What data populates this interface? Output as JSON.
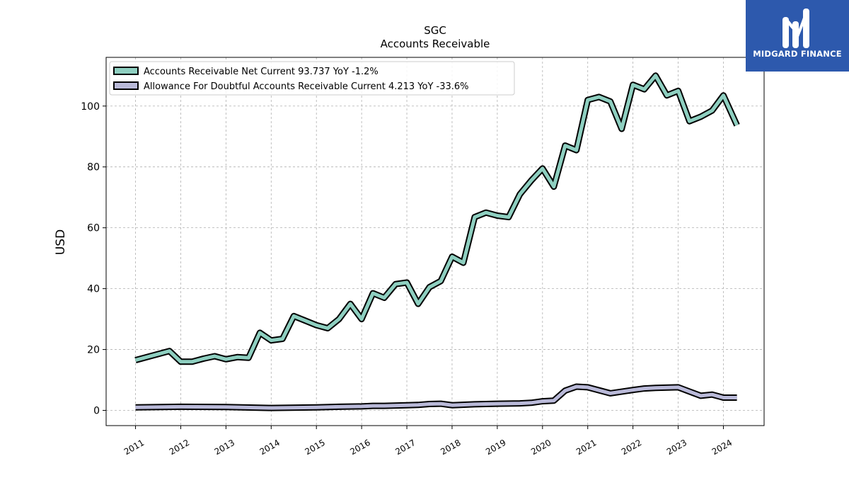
{
  "brand": {
    "name": "MIDGARD FINANCE",
    "bg_color": "#2d59ad"
  },
  "chart_data": {
    "type": "line",
    "title": "SGC",
    "subtitle": "Accounts Receivable",
    "ylabel": "USD",
    "xlabel": "",
    "ylim": [
      -5,
      116
    ],
    "yticks": [
      0,
      20,
      40,
      60,
      80,
      100
    ],
    "xlim": [
      2010.35,
      2024.9
    ],
    "xticks": [
      "2011",
      "2012",
      "2013",
      "2014",
      "2015",
      "2016",
      "2017",
      "2018",
      "2019",
      "2020",
      "2021",
      "2022",
      "2023",
      "2024"
    ],
    "grid": true,
    "legend_position": "top-left",
    "series": [
      {
        "name": "Accounts Receivable Net Current",
        "legend_label": "Accounts Receivable Net Current  93.737 YoY -1.2%",
        "color": "#8ecfc0",
        "points": [
          [
            2011.0,
            16.5
          ],
          [
            2011.75,
            19.5
          ],
          [
            2012.0,
            16.0
          ],
          [
            2012.25,
            16.0
          ],
          [
            2012.5,
            17.0
          ],
          [
            2012.75,
            17.8
          ],
          [
            2013.0,
            16.8
          ],
          [
            2013.25,
            17.5
          ],
          [
            2013.5,
            17.3
          ],
          [
            2013.75,
            25.5
          ],
          [
            2014.0,
            23.0
          ],
          [
            2014.25,
            23.5
          ],
          [
            2014.5,
            31.0
          ],
          [
            2014.75,
            29.5
          ],
          [
            2015.0,
            28.0
          ],
          [
            2015.25,
            27.0
          ],
          [
            2015.5,
            30.0
          ],
          [
            2015.75,
            35.0
          ],
          [
            2016.0,
            30.0
          ],
          [
            2016.25,
            38.5
          ],
          [
            2016.5,
            37.0
          ],
          [
            2016.75,
            41.5
          ],
          [
            2017.0,
            42.0
          ],
          [
            2017.25,
            35.0
          ],
          [
            2017.5,
            40.5
          ],
          [
            2017.75,
            42.5
          ],
          [
            2018.0,
            50.5
          ],
          [
            2018.25,
            48.5
          ],
          [
            2018.5,
            63.5
          ],
          [
            2018.75,
            65.0
          ],
          [
            2019.0,
            64.0
          ],
          [
            2019.25,
            63.5
          ],
          [
            2019.5,
            71.0
          ],
          [
            2019.75,
            75.5
          ],
          [
            2020.0,
            79.5
          ],
          [
            2020.25,
            73.5
          ],
          [
            2020.5,
            87.0
          ],
          [
            2020.75,
            85.5
          ],
          [
            2021.0,
            102.0
          ],
          [
            2021.25,
            103.0
          ],
          [
            2021.5,
            101.5
          ],
          [
            2021.75,
            92.5
          ],
          [
            2022.0,
            107.0
          ],
          [
            2022.25,
            105.5
          ],
          [
            2022.5,
            110.0
          ],
          [
            2022.75,
            103.5
          ],
          [
            2023.0,
            105.0
          ],
          [
            2023.25,
            95.0
          ],
          [
            2023.5,
            96.5
          ],
          [
            2023.75,
            98.5
          ],
          [
            2024.0,
            103.5
          ],
          [
            2024.3,
            93.7
          ]
        ]
      },
      {
        "name": "Allowance For Doubtful Accounts Receivable Current",
        "legend_label": "Allowance For Doubtful Accounts Receivable Current  4.213 YoY -33.6%",
        "color": "#b9b9d8",
        "points": [
          [
            2011.0,
            1.0
          ],
          [
            2012.0,
            1.2
          ],
          [
            2013.0,
            1.1
          ],
          [
            2014.0,
            0.8
          ],
          [
            2015.0,
            1.0
          ],
          [
            2015.5,
            1.2
          ],
          [
            2016.0,
            1.3
          ],
          [
            2016.25,
            1.5
          ],
          [
            2016.5,
            1.5
          ],
          [
            2017.0,
            1.7
          ],
          [
            2017.25,
            1.8
          ],
          [
            2017.5,
            2.1
          ],
          [
            2017.75,
            2.2
          ],
          [
            2018.0,
            1.7
          ],
          [
            2018.5,
            2.0
          ],
          [
            2019.0,
            2.2
          ],
          [
            2019.5,
            2.3
          ],
          [
            2019.75,
            2.5
          ],
          [
            2020.0,
            3.0
          ],
          [
            2020.25,
            3.2
          ],
          [
            2020.5,
            6.5
          ],
          [
            2020.75,
            7.8
          ],
          [
            2021.0,
            7.6
          ],
          [
            2021.5,
            5.6
          ],
          [
            2022.0,
            6.7
          ],
          [
            2022.25,
            7.2
          ],
          [
            2022.5,
            7.4
          ],
          [
            2023.0,
            7.6
          ],
          [
            2023.25,
            6.2
          ],
          [
            2023.5,
            4.8
          ],
          [
            2023.75,
            5.2
          ],
          [
            2024.0,
            4.2
          ],
          [
            2024.3,
            4.2
          ]
        ]
      }
    ]
  }
}
